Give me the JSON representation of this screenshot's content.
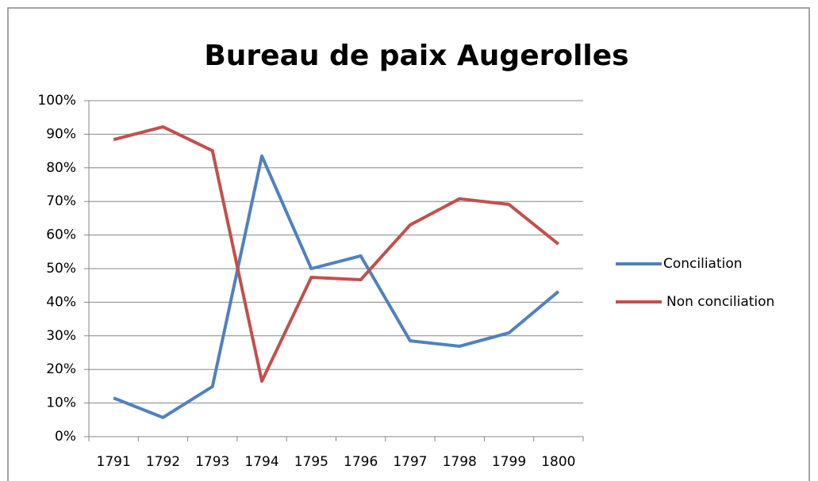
{
  "chart_data": {
    "type": "line",
    "title": "Bureau de paix Augerolles",
    "categories": [
      "1791",
      "1792",
      "1793",
      "1794",
      "1795",
      "1796",
      "1797",
      "1798",
      "1799",
      "1800"
    ],
    "series": [
      {
        "name": "Conciliation",
        "color": "#4f81bd",
        "values": [
          11.5,
          5.7,
          14.9,
          83.5,
          50,
          53.8,
          28.5,
          26.9,
          30.9,
          43.2
        ]
      },
      {
        "name": "Non conciliation",
        "color": "#c0504d",
        "values": [
          88.4,
          92.2,
          85.1,
          16.5,
          47.4,
          46.7,
          63,
          70.8,
          69.1,
          57.3
        ]
      }
    ],
    "ylim": [
      0,
      100
    ],
    "yticks": [
      {
        "value": 0,
        "label": "0%"
      },
      {
        "value": 10,
        "label": "10%"
      },
      {
        "value": 20,
        "label": "20%"
      },
      {
        "value": 30,
        "label": "30%"
      },
      {
        "value": 40,
        "label": "40%"
      },
      {
        "value": 50,
        "label": "50%"
      },
      {
        "value": 60,
        "label": "60%"
      },
      {
        "value": 70,
        "label": "70%"
      },
      {
        "value": 80,
        "label": "80%"
      },
      {
        "value": 90,
        "label": "90%"
      },
      {
        "value": 100,
        "label": "100%"
      }
    ],
    "grid": true,
    "legend": "right"
  }
}
